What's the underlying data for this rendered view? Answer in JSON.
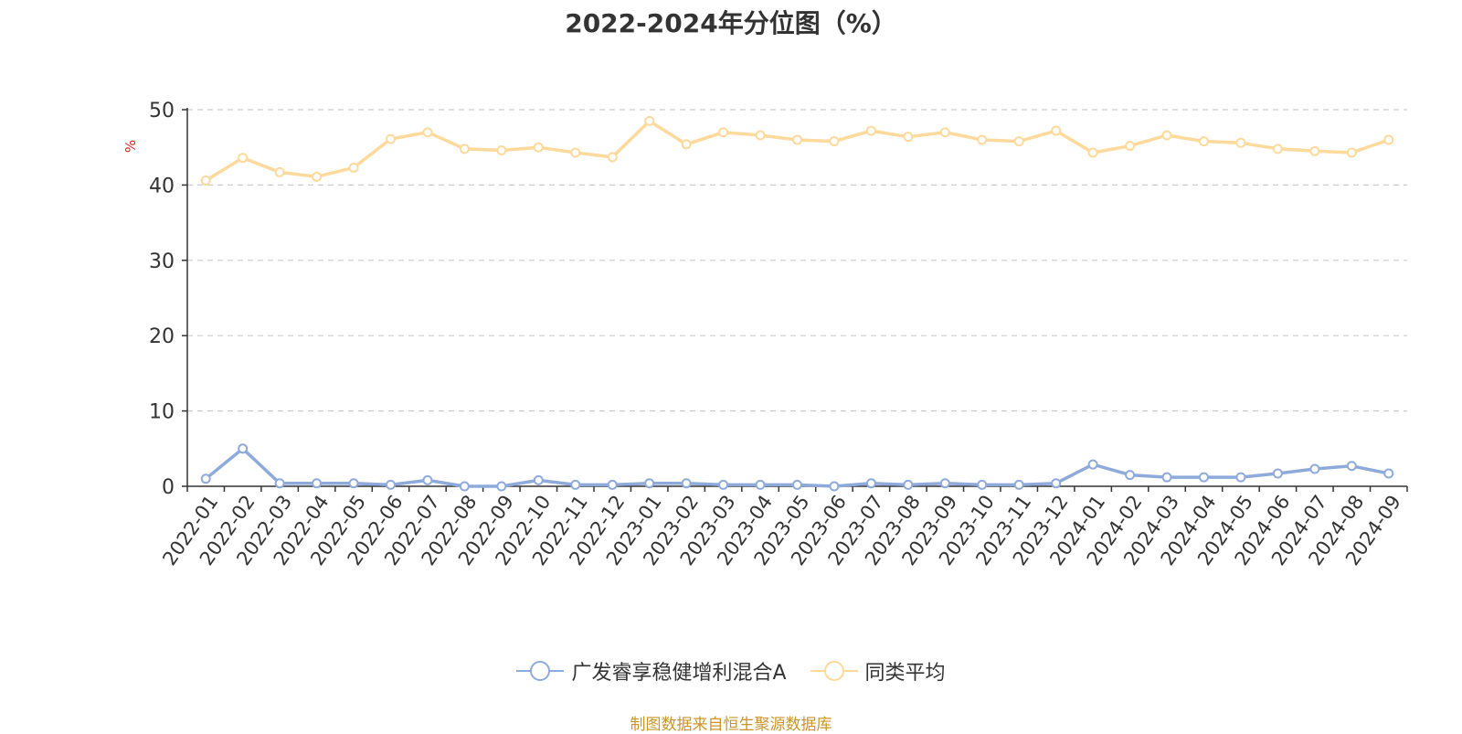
{
  "title": "2022-2024年分位图（%）",
  "source_note": "制图数据来自恒生聚源数据库",
  "colors": {
    "fund": "#8eaadb",
    "average": "#fdd99b",
    "ylabel": "#e02020"
  },
  "chart_data": {
    "type": "line",
    "title": "2022-2024年分位图（%）",
    "xlabel": "",
    "ylabel": "%",
    "ylim": [
      0,
      50
    ],
    "yticks": [
      "0",
      "10",
      "20",
      "30",
      "40",
      "50"
    ],
    "grid": true,
    "legend_position": "bottom",
    "categories": [
      "2022-01",
      "2022-02",
      "2022-03",
      "2022-04",
      "2022-05",
      "2022-06",
      "2022-07",
      "2022-08",
      "2022-09",
      "2022-10",
      "2022-11",
      "2022-12",
      "2023-01",
      "2023-02",
      "2023-03",
      "2023-04",
      "2023-05",
      "2023-06",
      "2023-07",
      "2023-08",
      "2023-09",
      "2023-10",
      "2023-11",
      "2023-12",
      "2024-01",
      "2024-02",
      "2024-03",
      "2024-04",
      "2024-05",
      "2024-06",
      "2024-07",
      "2024-08",
      "2024-09"
    ],
    "series": [
      {
        "name": "广发睿享稳健增利混合A",
        "values": [
          1.0,
          5.0,
          0.4,
          0.4,
          0.4,
          0.2,
          0.8,
          0.0,
          0.0,
          0.8,
          0.2,
          0.2,
          0.4,
          0.4,
          0.2,
          0.2,
          0.2,
          0.0,
          0.4,
          0.2,
          0.4,
          0.2,
          0.2,
          0.4,
          2.9,
          1.5,
          1.2,
          1.2,
          1.2,
          1.7,
          2.3,
          2.7,
          1.7
        ]
      },
      {
        "name": "同类平均",
        "values": [
          40.6,
          43.6,
          41.7,
          41.1,
          42.3,
          46.1,
          47.0,
          44.8,
          44.6,
          45.0,
          44.3,
          43.7,
          48.5,
          45.4,
          47.0,
          46.6,
          46.0,
          45.8,
          47.2,
          46.4,
          47.0,
          46.0,
          45.8,
          47.2,
          44.3,
          45.2,
          46.6,
          45.8,
          45.6,
          44.8,
          44.5,
          44.3,
          46.0
        ]
      }
    ]
  }
}
